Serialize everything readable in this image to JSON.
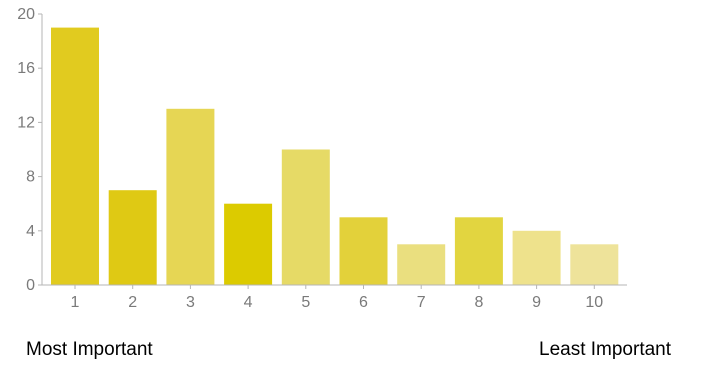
{
  "chart_data": {
    "type": "bar",
    "categories": [
      "1",
      "2",
      "3",
      "4",
      "5",
      "6",
      "7",
      "8",
      "9",
      "10"
    ],
    "values": [
      19,
      7,
      13,
      6,
      10,
      5,
      3,
      5,
      4,
      3
    ],
    "ylim": [
      0,
      20
    ],
    "yticks": [
      "0",
      "4",
      "8",
      "12",
      "16",
      "20"
    ],
    "colors": [
      "#e1cb1f",
      "#dfc914",
      "#e6d654",
      "#dccb00",
      "#e6da66",
      "#e3d13a",
      "#eadf7f",
      "#e2d540",
      "#eee28c",
      "#eee39a"
    ],
    "grid": false,
    "legend": "none"
  },
  "captions": {
    "left": "Most Important",
    "right": "Least Important"
  }
}
